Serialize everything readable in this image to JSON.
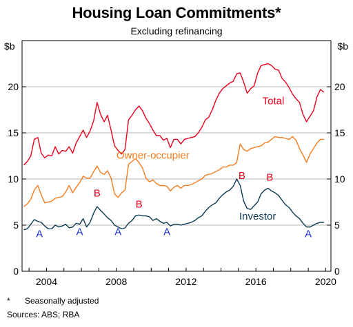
{
  "chart_data": {
    "type": "line",
    "title": "Housing Loan Commitments*",
    "subtitle": "Excluding refinancing",
    "ylabel_left": "$b",
    "ylabel_right": "$b",
    "xlabel": "",
    "xlim": [
      2002.6,
      2020.3
    ],
    "ylim": [
      0,
      25
    ],
    "x_ticks": [
      2004,
      2008,
      2012,
      2016,
      2020
    ],
    "y_ticks": [
      0,
      5,
      10,
      15,
      20
    ],
    "grid": true,
    "colors": {
      "Total": "#e8001c",
      "Owner-occupier": "#f57c1f",
      "Investor": "#0b3a52",
      "peak_marker": "#e8001c",
      "trough_marker": "#1c2fcf"
    },
    "series": [
      {
        "name": "Total",
        "label_x": 2017.0,
        "label_y": 18.1,
        "x": [
          2002.7,
          2002.9,
          2003.1,
          2003.3,
          2003.5,
          2003.7,
          2003.9,
          2004.1,
          2004.3,
          2004.5,
          2004.7,
          2004.9,
          2005.1,
          2005.3,
          2005.5,
          2005.7,
          2005.9,
          2006.1,
          2006.3,
          2006.5,
          2006.7,
          2006.9,
          2007.1,
          2007.3,
          2007.5,
          2007.7,
          2007.9,
          2008.1,
          2008.3,
          2008.5,
          2008.7,
          2008.9,
          2009.1,
          2009.3,
          2009.5,
          2009.7,
          2009.9,
          2010.1,
          2010.3,
          2010.5,
          2010.7,
          2010.9,
          2011.1,
          2011.3,
          2011.5,
          2011.7,
          2011.9,
          2012.1,
          2012.3,
          2012.5,
          2012.7,
          2012.9,
          2013.1,
          2013.3,
          2013.5,
          2013.7,
          2013.9,
          2014.1,
          2014.3,
          2014.5,
          2014.7,
          2014.9,
          2015.1,
          2015.3,
          2015.5,
          2015.7,
          2015.9,
          2016.1,
          2016.3,
          2016.5,
          2016.7,
          2016.9,
          2017.1,
          2017.3,
          2017.5,
          2017.7,
          2017.9,
          2018.1,
          2018.3,
          2018.5,
          2018.7,
          2018.9,
          2019.1,
          2019.3,
          2019.5,
          2019.7,
          2019.9
        ],
        "values": [
          11.5,
          11.9,
          12.5,
          14.3,
          14.5,
          12.8,
          12.3,
          12.6,
          12.5,
          13.5,
          12.7,
          13.1,
          13.0,
          13.5,
          12.8,
          13.9,
          14.6,
          15.3,
          14.5,
          15.2,
          16.3,
          18.3,
          17.0,
          16.2,
          16.9,
          15.3,
          13.6,
          13.1,
          12.7,
          13.2,
          16.4,
          16.9,
          17.5,
          17.9,
          17.4,
          16.6,
          16.0,
          15.3,
          14.7,
          14.7,
          14.2,
          14.4,
          13.4,
          14.3,
          14.3,
          13.8,
          14.3,
          14.4,
          14.5,
          14.6,
          15.0,
          15.6,
          16.4,
          16.7,
          17.5,
          18.5,
          19.3,
          19.8,
          20.1,
          20.4,
          20.6,
          21.4,
          21.5,
          20.5,
          19.3,
          19.8,
          20.1,
          21.5,
          22.3,
          22.4,
          22.5,
          22.3,
          21.9,
          21.8,
          20.9,
          20.5,
          19.9,
          19.2,
          18.7,
          18.3,
          17.0,
          16.2,
          16.8,
          17.4,
          18.9,
          19.7,
          19.4
        ]
      },
      {
        "name": "Owner-occupier",
        "label_x": 2010.1,
        "label_y": 12.2,
        "x": [
          2002.7,
          2002.9,
          2003.1,
          2003.3,
          2003.5,
          2003.7,
          2003.9,
          2004.1,
          2004.3,
          2004.5,
          2004.7,
          2004.9,
          2005.1,
          2005.3,
          2005.5,
          2005.7,
          2005.9,
          2006.1,
          2006.3,
          2006.5,
          2006.7,
          2006.9,
          2007.1,
          2007.3,
          2007.5,
          2007.7,
          2007.9,
          2008.1,
          2008.3,
          2008.5,
          2008.7,
          2008.9,
          2009.1,
          2009.3,
          2009.5,
          2009.7,
          2009.9,
          2010.1,
          2010.3,
          2010.5,
          2010.7,
          2010.9,
          2011.1,
          2011.3,
          2011.5,
          2011.7,
          2011.9,
          2012.1,
          2012.3,
          2012.5,
          2012.7,
          2012.9,
          2013.1,
          2013.3,
          2013.5,
          2013.7,
          2013.9,
          2014.1,
          2014.3,
          2014.5,
          2014.7,
          2014.9,
          2015.1,
          2015.3,
          2015.5,
          2015.7,
          2015.9,
          2016.1,
          2016.3,
          2016.5,
          2016.7,
          2016.9,
          2017.1,
          2017.3,
          2017.5,
          2017.7,
          2017.9,
          2018.1,
          2018.3,
          2018.5,
          2018.7,
          2018.9,
          2019.1,
          2019.3,
          2019.5,
          2019.7,
          2019.9
        ],
        "values": [
          7.0,
          7.3,
          7.8,
          8.8,
          9.3,
          8.3,
          7.4,
          7.5,
          7.6,
          7.9,
          8.0,
          8.1,
          8.6,
          9.3,
          8.5,
          9.1,
          9.6,
          10.3,
          10.1,
          10.1,
          10.8,
          11.4,
          10.7,
          10.5,
          10.9,
          10.1,
          8.4,
          8.0,
          8.5,
          8.8,
          11.6,
          11.9,
          12.2,
          11.8,
          11.2,
          10.1,
          9.7,
          9.9,
          9.5,
          9.3,
          9.3,
          9.2,
          8.7,
          9.1,
          9.3,
          9.0,
          9.3,
          9.3,
          9.4,
          9.6,
          9.8,
          10.0,
          10.4,
          10.5,
          10.6,
          10.8,
          11.0,
          11.3,
          11.3,
          11.5,
          11.5,
          11.8,
          13.8,
          13.2,
          13.0,
          13.3,
          13.4,
          13.5,
          13.6,
          13.9,
          14.0,
          14.3,
          14.6,
          14.5,
          14.5,
          14.4,
          14.3,
          14.6,
          14.2,
          13.3,
          12.6,
          11.8,
          12.7,
          13.3,
          13.9,
          14.3,
          14.3
        ]
      },
      {
        "name": "Investor",
        "label_x": 2016.1,
        "label_y": 5.6,
        "x": [
          2002.7,
          2002.9,
          2003.1,
          2003.3,
          2003.5,
          2003.7,
          2003.9,
          2004.1,
          2004.3,
          2004.5,
          2004.7,
          2004.9,
          2005.1,
          2005.3,
          2005.5,
          2005.7,
          2005.9,
          2006.1,
          2006.3,
          2006.5,
          2006.7,
          2006.9,
          2007.1,
          2007.3,
          2007.5,
          2007.7,
          2007.9,
          2008.1,
          2008.3,
          2008.5,
          2008.7,
          2008.9,
          2009.1,
          2009.3,
          2009.5,
          2009.7,
          2009.9,
          2010.1,
          2010.3,
          2010.5,
          2010.7,
          2010.9,
          2011.1,
          2011.3,
          2011.5,
          2011.7,
          2011.9,
          2012.1,
          2012.3,
          2012.5,
          2012.7,
          2012.9,
          2013.1,
          2013.3,
          2013.5,
          2013.7,
          2013.9,
          2014.1,
          2014.3,
          2014.5,
          2014.7,
          2014.9,
          2015.1,
          2015.3,
          2015.5,
          2015.7,
          2015.9,
          2016.1,
          2016.3,
          2016.5,
          2016.7,
          2016.9,
          2017.1,
          2017.3,
          2017.5,
          2017.7,
          2017.9,
          2018.1,
          2018.3,
          2018.5,
          2018.7,
          2018.9,
          2019.1,
          2019.3,
          2019.5,
          2019.7,
          2019.9
        ],
        "values": [
          4.5,
          4.6,
          5.1,
          5.6,
          5.4,
          5.3,
          4.9,
          4.6,
          4.6,
          5.0,
          4.8,
          4.9,
          5.1,
          4.7,
          4.8,
          5.2,
          5.1,
          5.7,
          4.8,
          5.3,
          6.3,
          7.0,
          6.6,
          6.2,
          5.8,
          5.5,
          5.0,
          4.8,
          4.6,
          4.7,
          5.2,
          5.5,
          6.0,
          6.1,
          6.0,
          6.0,
          5.9,
          5.5,
          5.7,
          5.4,
          5.2,
          5.3,
          4.9,
          5.1,
          5.1,
          5.0,
          5.1,
          5.2,
          5.3,
          5.5,
          5.8,
          6.0,
          6.5,
          6.9,
          7.2,
          7.4,
          7.9,
          8.3,
          8.6,
          8.8,
          9.2,
          10.0,
          9.3,
          7.6,
          6.8,
          6.7,
          7.1,
          7.5,
          8.4,
          8.8,
          9.0,
          8.7,
          8.5,
          8.2,
          7.7,
          7.2,
          6.9,
          6.4,
          6.0,
          5.7,
          5.2,
          4.8,
          4.8,
          5.0,
          5.2,
          5.3,
          5.3
        ]
      }
    ],
    "annotations": [
      {
        "text": "A",
        "x": 2003.6,
        "y": 3.7,
        "kind": "trough"
      },
      {
        "text": "A",
        "x": 2005.9,
        "y": 3.9,
        "kind": "trough"
      },
      {
        "text": "A",
        "x": 2008.1,
        "y": 3.9,
        "kind": "trough"
      },
      {
        "text": "A",
        "x": 2010.9,
        "y": 3.9,
        "kind": "trough"
      },
      {
        "text": "A",
        "x": 2019.0,
        "y": 3.7,
        "kind": "trough"
      },
      {
        "text": "B",
        "x": 2006.9,
        "y": 8.1,
        "kind": "peak"
      },
      {
        "text": "B",
        "x": 2009.3,
        "y": 6.9,
        "kind": "peak"
      },
      {
        "text": "B",
        "x": 2015.2,
        "y": 10.0,
        "kind": "peak"
      },
      {
        "text": "B",
        "x": 2016.8,
        "y": 9.8,
        "kind": "peak"
      }
    ]
  },
  "notes": {
    "footnote_marker": "*",
    "footnote_text": "Seasonally adjusted",
    "sources": "Sources: ABS; RBA"
  }
}
